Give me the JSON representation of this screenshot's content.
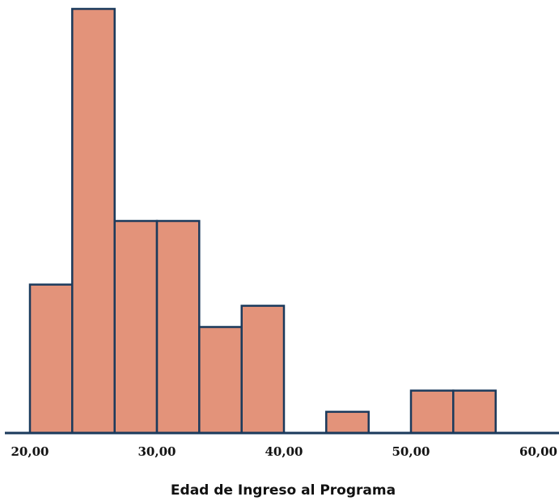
{
  "chart_data": {
    "type": "histogram",
    "title": "",
    "xlabel": "Edad de Ingreso al Programa",
    "ylabel": "",
    "xlim": [
      20,
      60
    ],
    "ylim": [
      0,
      20
    ],
    "xticks": [
      "20,00",
      "30,00",
      "40,00",
      "50,00",
      "60,00"
    ],
    "tick_values": [
      20,
      30,
      40,
      50,
      60
    ],
    "bins": [
      {
        "start": 20.0,
        "end": 23.33,
        "count": 7
      },
      {
        "start": 23.33,
        "end": 26.67,
        "count": 20
      },
      {
        "start": 26.67,
        "end": 30.0,
        "count": 10
      },
      {
        "start": 30.0,
        "end": 33.33,
        "count": 10
      },
      {
        "start": 33.33,
        "end": 36.67,
        "count": 5
      },
      {
        "start": 36.67,
        "end": 40.0,
        "count": 6
      },
      {
        "start": 40.0,
        "end": 43.33,
        "count": 0
      },
      {
        "start": 43.33,
        "end": 46.67,
        "count": 1
      },
      {
        "start": 46.67,
        "end": 50.0,
        "count": 0
      },
      {
        "start": 50.0,
        "end": 53.33,
        "count": 2
      },
      {
        "start": 53.33,
        "end": 56.67,
        "count": 2
      },
      {
        "start": 56.67,
        "end": 60.0,
        "count": 0
      }
    ],
    "colors": {
      "bar_fill": "#e3937a",
      "bar_stroke": "#1b3a5c",
      "axis": "#1b3a5c"
    }
  }
}
